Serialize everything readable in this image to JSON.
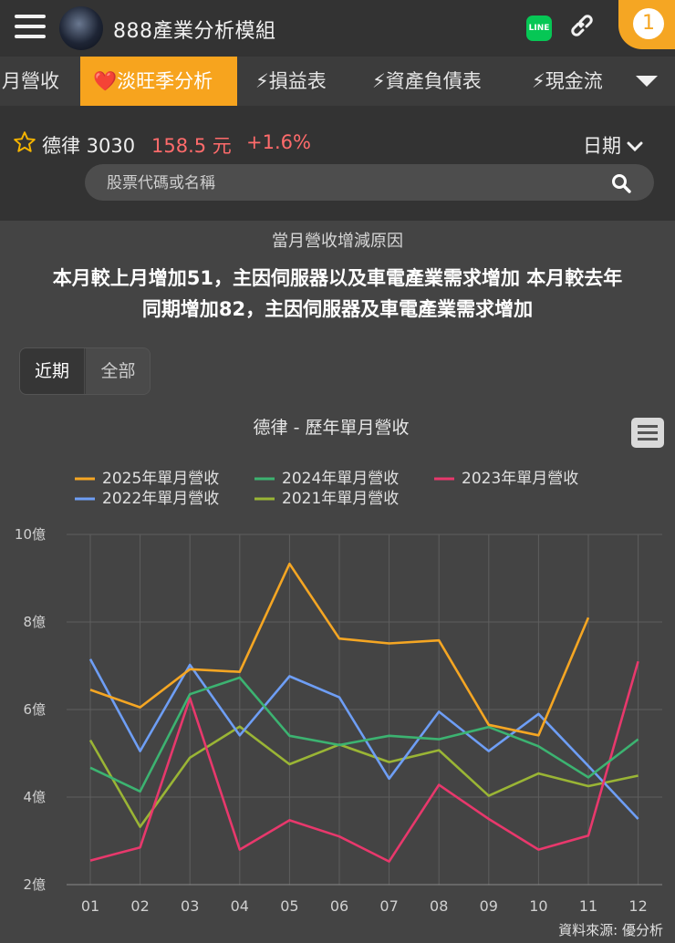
{
  "header": {
    "app_title": "888產業分析模組",
    "line_label": "LINE",
    "notification_count": "1"
  },
  "tabs": [
    {
      "label": "月營收",
      "active": false
    },
    {
      "label": "❤️淡旺季分析",
      "active": true
    },
    {
      "label": "⚡損益表",
      "active": false
    },
    {
      "label": "⚡資產負債表",
      "active": false
    },
    {
      "label": "⚡現金流",
      "active": false
    }
  ],
  "stock": {
    "name": "德律 3030",
    "price": "158.5 元",
    "change": "+1.6%",
    "date_label": "日期"
  },
  "search": {
    "placeholder": "股票代碼或名稱"
  },
  "reason": {
    "title": "當月營收增減原因",
    "line1": "本月較上月增加51，主因伺服器以及車電產業需求增加 本月較去年",
    "line2": "同期增加82，主因伺服器及車電產業需求增加"
  },
  "period_toggle": {
    "recent": "近期",
    "all": "全部"
  },
  "source_label": "資料來源: 優分析",
  "chart_data": {
    "type": "line",
    "title": "德律 - 歷年單月營收",
    "categories": [
      "01",
      "02",
      "03",
      "04",
      "05",
      "06",
      "07",
      "08",
      "09",
      "10",
      "11",
      "12"
    ],
    "y_tick_labels": [
      "2億",
      "4億",
      "6億",
      "8億",
      "10億"
    ],
    "ylim": [
      2,
      10
    ],
    "y_ticks": [
      2,
      4,
      6,
      8,
      10
    ],
    "grid": true,
    "legend_position": "top",
    "series": [
      {
        "name": "2025年單月營收",
        "color": "#f5a623",
        "values": [
          6.45,
          6.05,
          6.92,
          6.86,
          9.33,
          7.62,
          7.51,
          7.58,
          5.65,
          5.41,
          8.1,
          null
        ]
      },
      {
        "name": "2024年單月營收",
        "color": "#3cb371",
        "values": [
          4.67,
          4.13,
          6.35,
          6.73,
          5.4,
          5.19,
          5.4,
          5.32,
          5.6,
          5.16,
          4.45,
          5.32
        ]
      },
      {
        "name": "2023年單月營收",
        "color": "#e8386c",
        "values": [
          2.55,
          2.85,
          6.26,
          2.8,
          3.47,
          3.1,
          2.53,
          4.28,
          3.5,
          2.8,
          3.12,
          7.1
        ]
      },
      {
        "name": "2022年單月營收",
        "color": "#6e9ef5",
        "values": [
          7.15,
          5.05,
          7.02,
          5.41,
          6.76,
          6.28,
          4.42,
          5.95,
          5.05,
          5.9,
          4.71,
          3.5
        ]
      },
      {
        "name": "2021年單月營收",
        "color": "#9ab535",
        "values": [
          5.3,
          3.32,
          4.9,
          5.61,
          4.75,
          5.2,
          4.8,
          5.07,
          4.03,
          4.54,
          4.25,
          4.49
        ]
      }
    ]
  }
}
